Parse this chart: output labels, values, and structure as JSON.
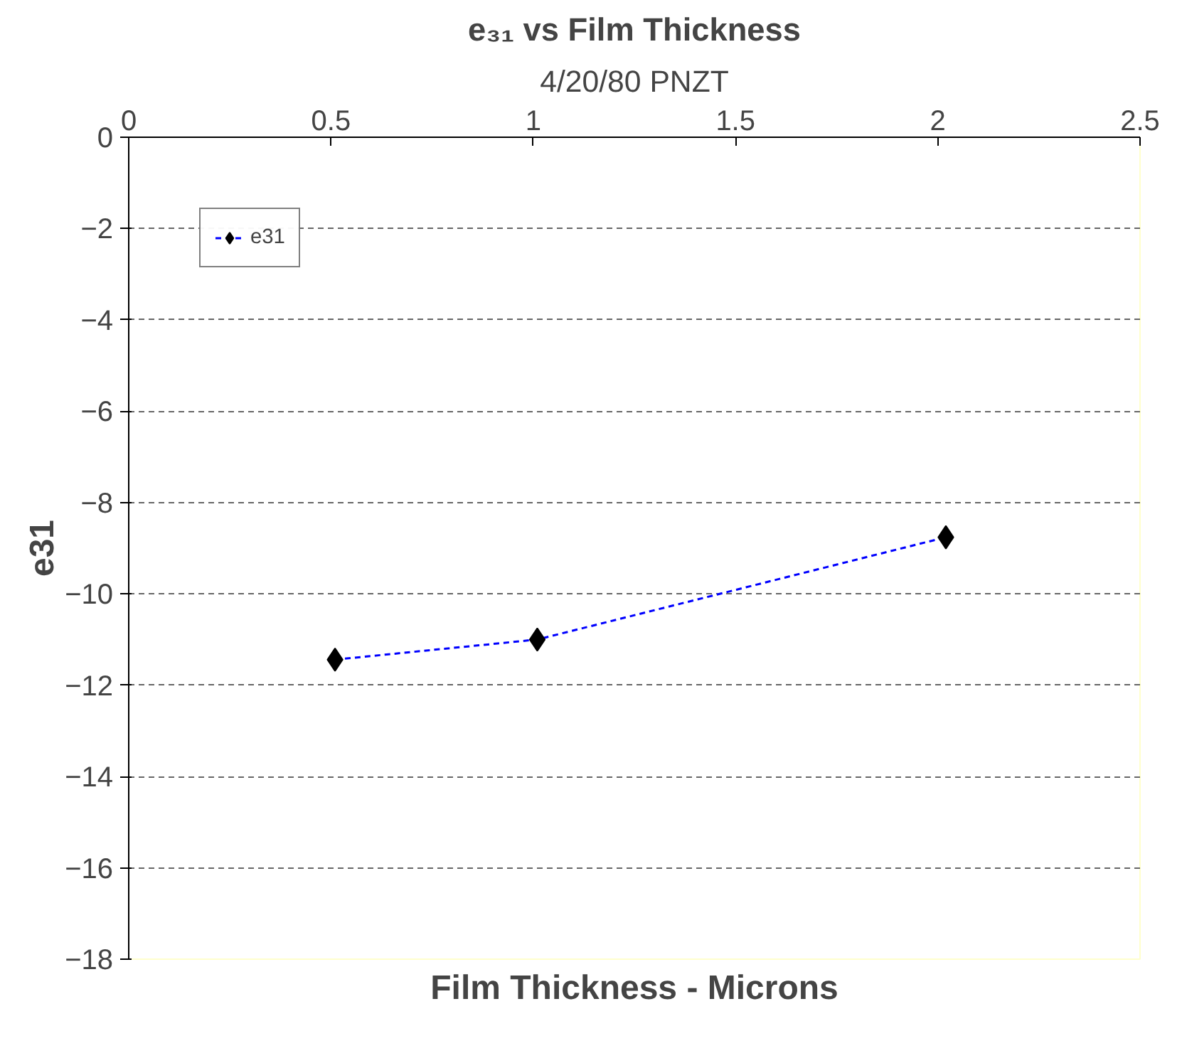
{
  "chart_data": {
    "type": "line",
    "title": "e₃₁ vs Film Thickness",
    "subtitle": "4/20/80 PNZT",
    "xlabel": "Film Thickness - Microns",
    "ylabel": "e31",
    "x": [
      0.51,
      1.01,
      2.02
    ],
    "series": [
      {
        "name": "e31",
        "color": "#0000ff",
        "values": [
          -11.44,
          -11.0,
          -8.76
        ]
      }
    ],
    "xlim": [
      0,
      2.5
    ],
    "xticks": [
      0,
      0.5,
      1,
      1.5,
      2,
      2.5
    ],
    "ylim": [
      -18,
      0
    ],
    "yticks": [
      0,
      -2,
      -4,
      -6,
      -8,
      -10,
      -12,
      -14,
      -16,
      -18
    ],
    "grid": "y",
    "legend": "top left",
    "marker": "diamond",
    "line_style": "dashed"
  }
}
